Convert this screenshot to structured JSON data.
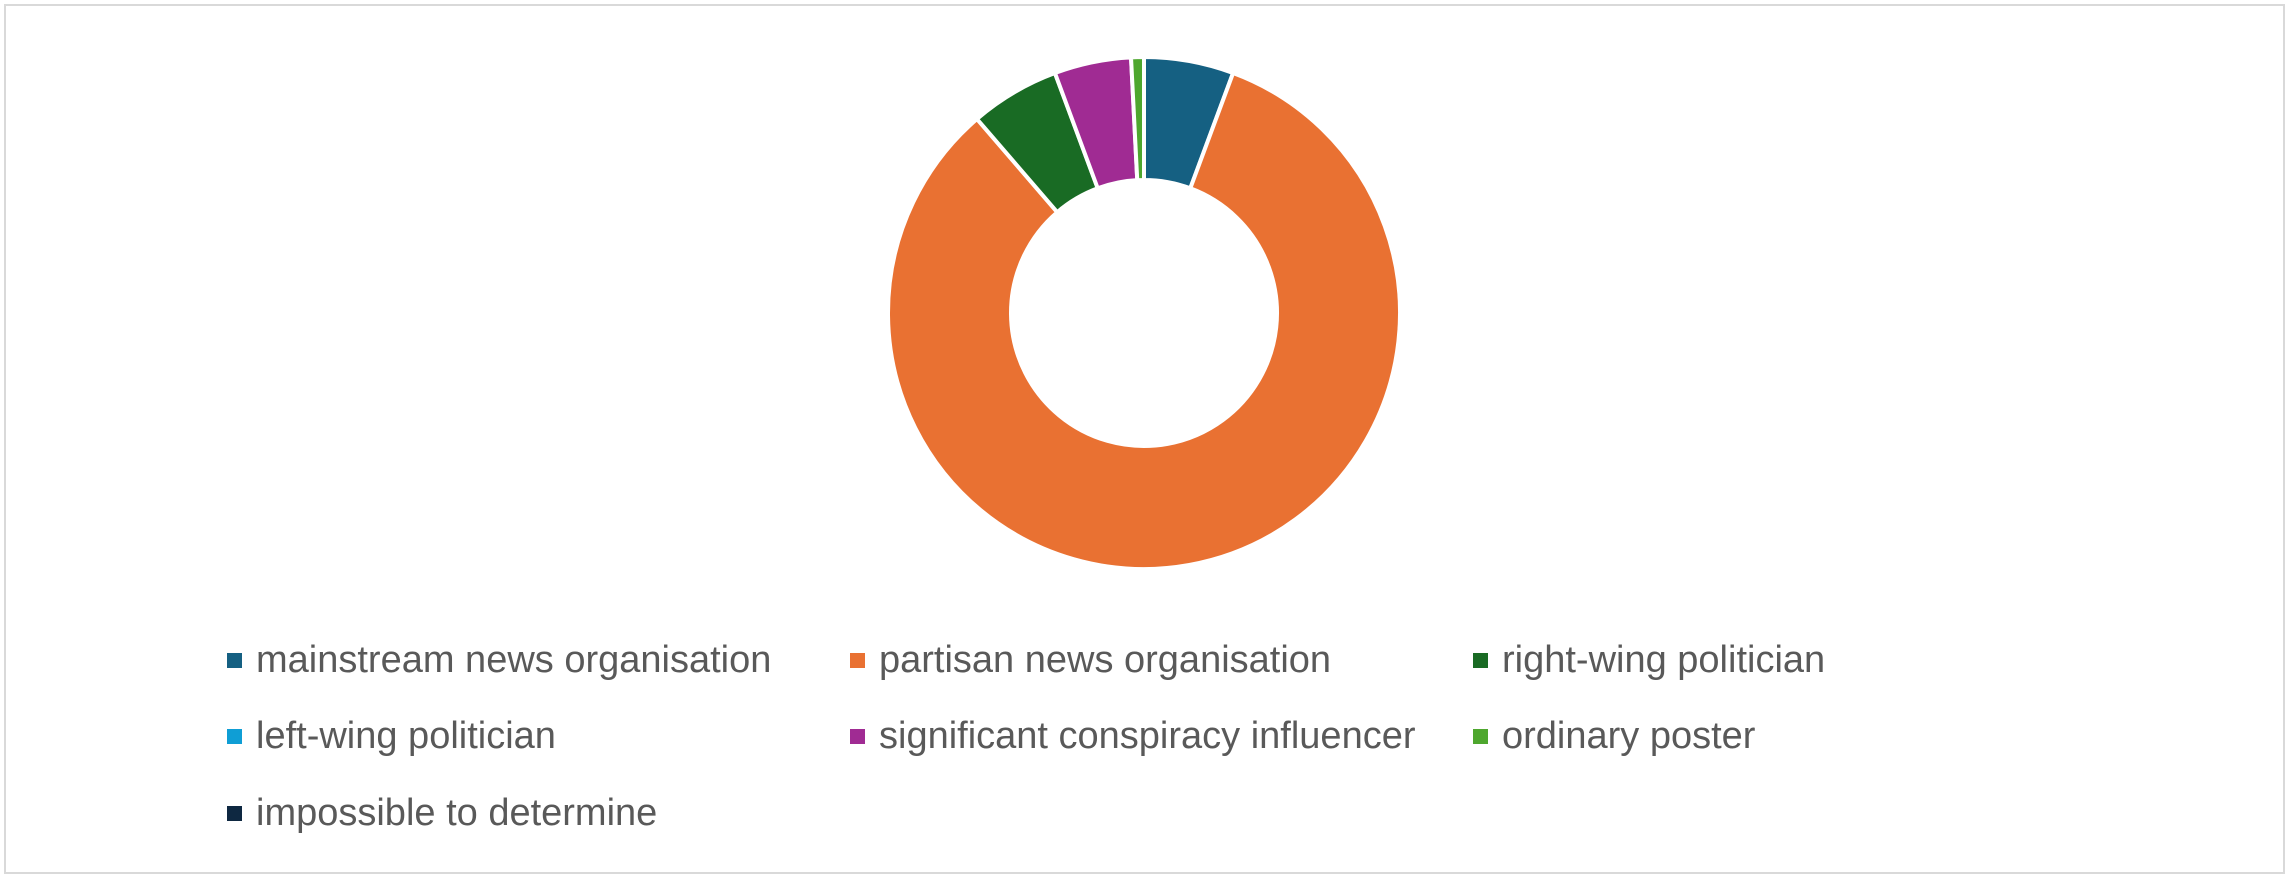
{
  "chart_data": {
    "type": "pie",
    "variant": "donut",
    "title": "",
    "categories": [
      "mainstream news organisation",
      "partisan news organisation",
      "right-wing politician",
      "left-wing politician",
      "significant conspiracy influencer",
      "ordinary poster",
      "impossible to determine"
    ],
    "values": [
      5.6,
      82.2,
      5.6,
      0.0,
      4.8,
      0.8,
      0.0
    ],
    "colors": [
      "#156082",
      "#E97132",
      "#196B24",
      "#0F9ED5",
      "#A02B93",
      "#4EA72E",
      "#0E2841"
    ],
    "value_unit": "percent (estimated share of the ring)",
    "start_angle": "12 o'clock, clockwise",
    "legend_position": "bottom",
    "legend_columns": 3
  }
}
